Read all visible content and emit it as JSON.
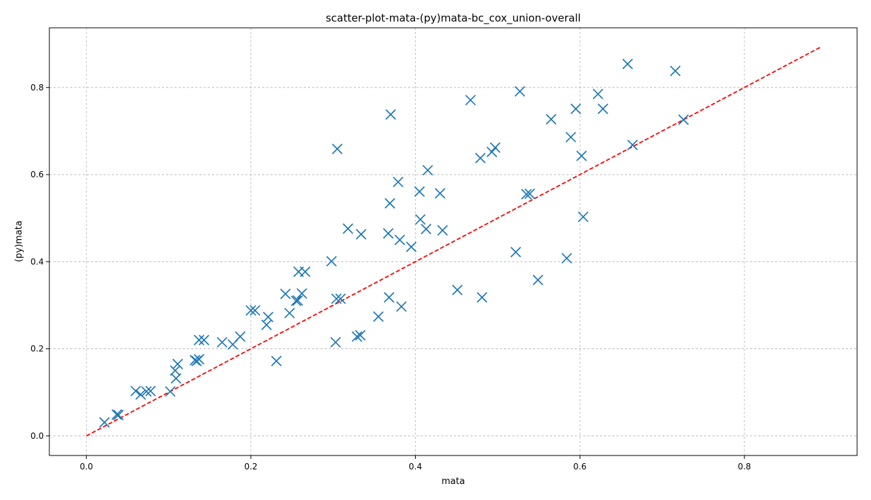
{
  "chart_data": {
    "type": "scatter",
    "title": "scatter-plot-mata-(py)mata-bc_cox_union-overall",
    "xlabel": "mata",
    "ylabel": "(py)mata",
    "xlim": [
      -0.045,
      0.937
    ],
    "ylim": [
      -0.045,
      0.937
    ],
    "xticks": [
      0.0,
      0.2,
      0.4,
      0.6,
      0.8
    ],
    "yticks": [
      0.0,
      0.2,
      0.4,
      0.6,
      0.8
    ],
    "xtick_labels": [
      "0.0",
      "0.2",
      "0.4",
      "0.6",
      "0.8"
    ],
    "ytick_labels": [
      "0.0",
      "0.2",
      "0.4",
      "0.6",
      "0.8"
    ],
    "grid": true,
    "marker": "x",
    "colors": {
      "points": "#1f77b4",
      "reference_line": "#ff0000"
    },
    "reference_line": {
      "x": [
        0.0,
        0.893
      ],
      "y": [
        0.0,
        0.893
      ],
      "style": "dashed"
    },
    "points": [
      [
        0.022,
        0.031
      ],
      [
        0.037,
        0.049
      ],
      [
        0.039,
        0.048
      ],
      [
        0.06,
        0.103
      ],
      [
        0.066,
        0.095
      ],
      [
        0.073,
        0.102
      ],
      [
        0.078,
        0.103
      ],
      [
        0.102,
        0.102
      ],
      [
        0.108,
        0.15
      ],
      [
        0.109,
        0.132
      ],
      [
        0.111,
        0.165
      ],
      [
        0.132,
        0.174
      ],
      [
        0.134,
        0.172
      ],
      [
        0.137,
        0.176
      ],
      [
        0.137,
        0.22
      ],
      [
        0.143,
        0.22
      ],
      [
        0.165,
        0.215
      ],
      [
        0.178,
        0.21
      ],
      [
        0.187,
        0.228
      ],
      [
        0.2,
        0.288
      ],
      [
        0.205,
        0.288
      ],
      [
        0.219,
        0.255
      ],
      [
        0.221,
        0.273
      ],
      [
        0.231,
        0.172
      ],
      [
        0.242,
        0.326
      ],
      [
        0.247,
        0.282
      ],
      [
        0.255,
        0.31
      ],
      [
        0.257,
        0.311
      ],
      [
        0.258,
        0.377
      ],
      [
        0.262,
        0.327
      ],
      [
        0.266,
        0.377
      ],
      [
        0.298,
        0.401
      ],
      [
        0.303,
        0.215
      ],
      [
        0.304,
        0.315
      ],
      [
        0.305,
        0.659
      ],
      [
        0.309,
        0.315
      ],
      [
        0.318,
        0.476
      ],
      [
        0.329,
        0.228
      ],
      [
        0.333,
        0.231
      ],
      [
        0.334,
        0.463
      ],
      [
        0.355,
        0.274
      ],
      [
        0.367,
        0.465
      ],
      [
        0.368,
        0.318
      ],
      [
        0.369,
        0.534
      ],
      [
        0.37,
        0.738
      ],
      [
        0.379,
        0.583
      ],
      [
        0.381,
        0.45
      ],
      [
        0.383,
        0.297
      ],
      [
        0.395,
        0.434
      ],
      [
        0.405,
        0.561
      ],
      [
        0.406,
        0.497
      ],
      [
        0.413,
        0.475
      ],
      [
        0.415,
        0.61
      ],
      [
        0.43,
        0.557
      ],
      [
        0.433,
        0.472
      ],
      [
        0.451,
        0.335
      ],
      [
        0.467,
        0.771
      ],
      [
        0.479,
        0.638
      ],
      [
        0.481,
        0.318
      ],
      [
        0.493,
        0.652
      ],
      [
        0.497,
        0.662
      ],
      [
        0.522,
        0.422
      ],
      [
        0.527,
        0.791
      ],
      [
        0.535,
        0.555
      ],
      [
        0.539,
        0.556
      ],
      [
        0.549,
        0.358
      ],
      [
        0.565,
        0.727
      ],
      [
        0.584,
        0.408
      ],
      [
        0.589,
        0.686
      ],
      [
        0.595,
        0.751
      ],
      [
        0.602,
        0.643
      ],
      [
        0.604,
        0.503
      ],
      [
        0.622,
        0.785
      ],
      [
        0.628,
        0.751
      ],
      [
        0.658,
        0.854
      ],
      [
        0.664,
        0.668
      ],
      [
        0.716,
        0.838
      ],
      [
        0.726,
        0.726
      ]
    ]
  }
}
